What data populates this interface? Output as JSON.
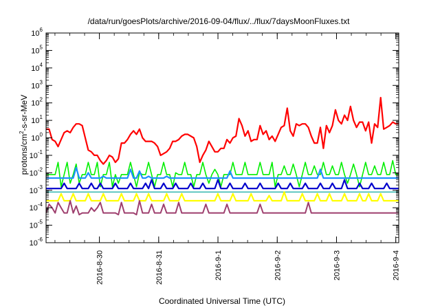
{
  "chart_data": {
    "type": "line",
    "title": "/data/run/goesPlots/archive/2016-09-04/flux/../flux/7daysMoonFluxes.txt",
    "xlabel": "Coordinated Universal Time (UTC)",
    "ylabel": {
      "prefix": "protons/cm",
      "sup": "2",
      "suffix": "-s-sr-MeV"
    },
    "y_scale": "log",
    "ylim_exp": [
      -6,
      6
    ],
    "y_tick_exponents": [
      -6,
      -5,
      -4,
      -3,
      -2,
      -1,
      0,
      1,
      2,
      3,
      4,
      5,
      6
    ],
    "x_range_days": [
      0,
      5.95
    ],
    "x_ticks": [
      {
        "label": "2016-8-30",
        "day": 0.9
      },
      {
        "label": "2016-8-31",
        "day": 1.9
      },
      {
        "label": "2016-9-1",
        "day": 2.9
      },
      {
        "label": "2016-9-2",
        "day": 3.9
      },
      {
        "label": "2016-9-3",
        "day": 4.9
      },
      {
        "label": "2016-9-4",
        "day": 5.9
      }
    ],
    "grid": false,
    "series": [
      {
        "color": "#ff0000",
        "width": 2.2,
        "values": [
          0.5,
          0.5,
          -0.1,
          -0.2,
          -0.5,
          -0.1,
          0.3,
          0.4,
          0.3,
          0.6,
          0.8,
          0.8,
          0.7,
          0.0,
          -0.7,
          -0.8,
          -1.0,
          -1.0,
          -1.3,
          -1.5,
          -1.3,
          -1.0,
          -1.1,
          -1.4,
          -1.2,
          -0.3,
          -0.3,
          -0.1,
          0.2,
          0.4,
          0.2,
          0.5,
          0.0,
          -0.2,
          -0.2,
          -0.2,
          -0.3,
          -0.5,
          -1.0,
          -0.9,
          -0.8,
          -0.6,
          -0.2,
          -0.2,
          -0.1,
          0.1,
          0.2,
          0.2,
          0.1,
          0.0,
          -0.5,
          -1.4,
          -1.0,
          -0.7,
          -0.2,
          -0.5,
          -0.8,
          -0.8,
          -0.6,
          -0.6,
          -0.1,
          -0.3,
          0.0,
          0.1,
          1.1,
          0.7,
          0.1,
          0.4,
          -0.2,
          -0.1,
          -0.1,
          0.7,
          0.2,
          0.4,
          -0.1,
          0.1,
          -0.2,
          0.2,
          0.6,
          0.7,
          1.7,
          0.4,
          0.1,
          0.8,
          0.7,
          0.8,
          0.8,
          0.6,
          0.1,
          -0.3,
          -0.3,
          0.6,
          -0.6,
          0.7,
          0.3,
          0.7,
          1.6,
          1.0,
          0.8,
          1.3,
          1.0,
          1.8,
          1.0,
          0.6,
          0.9,
          0.9,
          0.4,
          0.9,
          -0.3,
          0.8,
          0.6,
          2.3,
          0.5,
          0.6,
          0.7,
          0.9,
          0.8,
          0.8
        ]
      },
      {
        "color": "#00ee00",
        "width": 1.6,
        "values": [
          -2.1,
          -2.1,
          -2.1,
          -2.1,
          -1.4,
          -2.8,
          -2.1,
          -1.4,
          -2.6,
          -2.1,
          -1.5,
          -2.6,
          -2.1,
          -2.1,
          -1.4,
          -2.1,
          -2.1,
          -1.4,
          -2.8,
          -2.1,
          -2.1,
          -1.4,
          -2.8,
          -2.1,
          -2.6,
          -2.1,
          -2.1,
          -2.1,
          -1.4,
          -2.1,
          -2.8,
          -2.0,
          -2.1,
          -2.1,
          -1.4,
          -2.1,
          -2.8,
          -2.1,
          -2.1,
          -1.4,
          -2.1,
          -2.1,
          -2.8,
          -2.0,
          -2.1,
          -2.1,
          -1.4,
          -2.1,
          -2.1,
          -2.8,
          -2.1,
          -2.1,
          -1.4,
          -2.1,
          -2.6,
          -2.1,
          -1.8,
          -2.1,
          -2.8,
          -2.1,
          -2.1,
          -2.1,
          -1.4,
          -2.1,
          -2.1,
          -2.1,
          -1.4,
          -2.1,
          -2.1,
          -2.1,
          -2.1,
          -1.4,
          -2.1,
          -2.1,
          -2.1,
          -1.4,
          -2.8,
          -2.1,
          -2.1,
          -1.6,
          -2.1,
          -2.1,
          -1.5,
          -2.1,
          -2.8,
          -2.1,
          -1.4,
          -2.1,
          -2.1,
          -1.6,
          -2.1,
          -2.1,
          -1.4,
          -2.1,
          -2.1,
          -1.6,
          -2.1,
          -2.1,
          -1.4,
          -2.1,
          -2.6,
          -2.1,
          -1.5,
          -2.1,
          -2.8,
          -2.1,
          -1.4,
          -2.1,
          -2.1,
          -1.6,
          -2.1,
          -2.1,
          -1.4,
          -2.1,
          -2.1,
          -1.3,
          -2.1,
          -2.1
        ]
      },
      {
        "color": "#1e90ff",
        "width": 2.2,
        "values": [
          -2.3,
          -2.3,
          -2.3,
          -2.3,
          -2.3,
          -2.3,
          -2.3,
          -2.3,
          -2.3,
          -2.3,
          -1.7,
          -2.3,
          -2.3,
          -2.3,
          -2.0,
          -2.3,
          -2.3,
          -2.3,
          -2.3,
          -2.2,
          -2.3,
          -2.3,
          -2.3,
          -2.3,
          -2.3,
          -2.3,
          -2.3,
          -2.3,
          -1.8,
          -2.3,
          -2.3,
          -1.9,
          -2.3,
          -2.3,
          -2.2,
          -2.3,
          -2.3,
          -2.3,
          -2.3,
          -2.3,
          -2.2,
          -2.3,
          -2.3,
          -2.3,
          -2.3,
          -2.3,
          -2.3,
          -2.3,
          -2.3,
          -2.3,
          -2.3,
          -2.3,
          -2.3,
          -2.3,
          -2.3,
          -2.3,
          -2.3,
          -2.3,
          -2.3,
          -2.3,
          -2.3,
          -1.9,
          -2.3,
          -2.3,
          -2.3,
          -2.3,
          -2.3,
          -2.3,
          -2.3,
          -2.3,
          -2.3,
          -2.3,
          -2.3,
          -2.3,
          -2.3,
          -2.3,
          -2.3,
          -2.3,
          -2.3,
          -2.3,
          -2.3,
          -2.3,
          -2.3,
          -2.3,
          -2.3,
          -2.3,
          -2.3,
          -2.3,
          -2.3,
          -2.3,
          -2.3,
          -1.8,
          -2.3,
          -2.3,
          -2.3,
          -2.3,
          -2.3,
          -2.3,
          -2.3,
          -2.3,
          -2.3,
          -2.3,
          -2.3,
          -2.3,
          -2.3,
          -2.3,
          -2.3,
          -2.3,
          -2.3,
          -2.3,
          -2.3,
          -2.3,
          -2.3,
          -2.3,
          -2.3,
          -2.3,
          -2.3,
          -2.3
        ]
      },
      {
        "color": "#0000cc",
        "width": 2.2,
        "values": [
          -2.9,
          -2.9,
          -2.9,
          -2.9,
          -2.9,
          -2.9,
          -2.6,
          -2.9,
          -2.9,
          -2.9,
          -2.9,
          -2.6,
          -2.9,
          -2.9,
          -2.9,
          -2.6,
          -2.9,
          -2.9,
          -2.6,
          -2.9,
          -2.9,
          -2.9,
          -2.9,
          -2.6,
          -2.9,
          -2.9,
          -2.9,
          -2.9,
          -2.6,
          -2.9,
          -2.9,
          -2.9,
          -2.9,
          -2.6,
          -2.9,
          -2.4,
          -2.9,
          -2.9,
          -2.9,
          -2.6,
          -2.9,
          -2.9,
          -2.9,
          -2.6,
          -2.9,
          -2.9,
          -2.9,
          -2.9,
          -2.6,
          -2.9,
          -2.9,
          -2.9,
          -2.6,
          -2.9,
          -2.9,
          -2.9,
          -2.9,
          -2.4,
          -2.9,
          -2.9,
          -2.9,
          -2.6,
          -2.9,
          -2.9,
          -2.9,
          -2.9,
          -2.6,
          -2.9,
          -2.9,
          -2.9,
          -2.9,
          -2.6,
          -2.9,
          -2.9,
          -2.9,
          -2.9,
          -2.9,
          -2.6,
          -2.9,
          -2.9,
          -2.9,
          -2.6,
          -2.9,
          -2.9,
          -2.9,
          -2.9,
          -2.6,
          -2.9,
          -2.9,
          -2.9,
          -2.9,
          -2.6,
          -2.9,
          -2.9,
          -2.9,
          -2.6,
          -2.9,
          -2.9,
          -2.9,
          -2.4,
          -2.9,
          -2.9,
          -2.9,
          -2.9,
          -2.6,
          -2.9,
          -2.9,
          -2.9,
          -2.6,
          -2.9,
          -2.9,
          -2.9,
          -2.9,
          -2.6,
          -2.9,
          -2.9,
          -2.9,
          -2.9
        ]
      },
      {
        "color": "#20b2aa",
        "width": 1.4,
        "values": [
          -3.1,
          -3.1,
          -3.1,
          -3.1,
          -3.1,
          -3.1,
          -3.1,
          -3.1,
          -3.1,
          -3.1,
          -3.1,
          -3.1,
          -3.1,
          -3.1,
          -3.1,
          -3.1,
          -3.1,
          -3.1,
          -3.1,
          -3.1,
          -3.1,
          -3.1,
          -3.1,
          -3.1,
          -3.1,
          -3.1,
          -3.1,
          -3.1,
          -3.1,
          -3.1,
          -3.1,
          -3.1,
          -3.1,
          -3.1,
          -3.1,
          -3.1,
          -3.1,
          -3.1,
          -3.1,
          -3.1,
          -3.1,
          -3.1,
          -3.1,
          -3.1,
          -3.1,
          -3.1,
          -3.1,
          -3.1,
          -3.1,
          -3.1,
          -3.1,
          -3.1,
          -3.1,
          -3.1,
          -3.1,
          -3.1,
          -3.1,
          -3.1,
          -3.1,
          -3.1,
          -3.1,
          -3.1,
          -3.1,
          -3.1,
          -3.1,
          -3.1,
          -3.1,
          -3.1,
          -3.1,
          -3.1,
          -3.1,
          -3.1,
          -3.1,
          -3.1,
          -3.1,
          -3.1,
          -3.1,
          -3.1,
          -3.1,
          -3.1,
          -3.1,
          -3.1,
          -3.1,
          -3.1,
          -3.1,
          -3.1,
          -3.1,
          -3.1,
          -3.1,
          -3.1,
          -3.1,
          -3.1,
          -3.1,
          -3.1,
          -3.1,
          -3.1,
          -3.1,
          -3.1,
          -3.1,
          -3.1,
          -3.1,
          -3.1,
          -3.1,
          -3.1,
          -3.1,
          -3.1,
          -3.1,
          -3.1,
          -3.1,
          -3.1,
          -3.1,
          -3.1,
          -3.1,
          -3.1,
          -3.1,
          -3.1,
          -3.1,
          -3.1
        ]
      },
      {
        "color": "#ffff00",
        "width": 2.2,
        "values": [
          -3.6,
          -3.6,
          -3.6,
          -3.6,
          -3.6,
          -3.2,
          -3.6,
          -3.6,
          -3.6,
          -3.2,
          -3.6,
          -3.6,
          -3.6,
          -3.6,
          -3.2,
          -3.6,
          -3.6,
          -3.6,
          -3.6,
          -3.2,
          -3.6,
          -3.6,
          -3.6,
          -3.6,
          -3.6,
          -3.2,
          -3.6,
          -3.6,
          -3.6,
          -3.6,
          -3.2,
          -3.6,
          -3.6,
          -3.6,
          -3.2,
          -3.6,
          -3.6,
          -3.6,
          -3.6,
          -3.6,
          -3.2,
          -3.6,
          -3.6,
          -3.6,
          -3.6,
          -3.2,
          -3.6,
          -3.6,
          -3.6,
          -3.6,
          -3.6,
          -3.6,
          -3.6,
          -3.6,
          -3.6,
          -3.6,
          -3.6,
          -3.2,
          -3.6,
          -3.6,
          -3.6,
          -3.6,
          -3.2,
          -3.6,
          -3.6,
          -3.6,
          -3.6,
          -3.6,
          -3.2,
          -3.6,
          -3.6,
          -3.6,
          -3.6,
          -3.6,
          -3.3,
          -3.6,
          -3.6,
          -3.6,
          -3.6,
          -3.1,
          -3.6,
          -3.6,
          -3.6,
          -3.6,
          -3.6,
          -3.2,
          -3.6,
          -3.6,
          -3.6,
          -3.6,
          -3.2,
          -3.6,
          -3.6,
          -3.6,
          -3.2,
          -3.6,
          -3.6,
          -3.6,
          -3.6,
          -3.2,
          -3.6,
          -3.6,
          -3.6,
          -3.6,
          -3.2,
          -3.6,
          -3.6,
          -3.2,
          -3.6,
          -3.6,
          -3.6,
          -3.2,
          -3.6,
          -3.6,
          -3.6,
          -3.6,
          -3.6,
          -3.6
        ]
      },
      {
        "color": "#9e3f6e",
        "width": 2.0,
        "values": [
          -4.3,
          -3.8,
          -4.0,
          -4.3,
          -3.7,
          -4.0,
          -4.3,
          -4.3,
          -3.6,
          -4.3,
          -3.9,
          -4.4,
          -4.3,
          -4.3,
          -4.3,
          -4.0,
          -4.2,
          -4.0,
          -3.7,
          -4.3,
          -4.3,
          -4.3,
          -4.3,
          -4.3,
          -4.4,
          -3.7,
          -4.3,
          -4.3,
          -4.3,
          -4.3,
          -4.4,
          -3.6,
          -4.3,
          -4.3,
          -4.3,
          -3.8,
          -4.3,
          -4.3,
          -4.3,
          -3.8,
          -4.3,
          -4.3,
          -4.3,
          -4.3,
          -3.7,
          -4.3,
          -4.3,
          -4.3,
          -4.3,
          -4.3,
          -4.3,
          -4.3,
          -4.3,
          -3.8,
          -4.3,
          -4.3,
          -4.3,
          -4.3,
          -4.3,
          -4.3,
          -3.8,
          -4.3,
          -4.3,
          -4.3,
          -4.3,
          -4.3,
          -4.3,
          -4.3,
          -4.3,
          -4.3,
          -4.3,
          -3.8,
          -4.3,
          -4.3,
          -4.3,
          -4.3,
          -4.3,
          -4.3,
          -4.3,
          -4.3,
          -4.3,
          -4.3,
          -4.3,
          -4.3,
          -4.3,
          -4.3,
          -4.3,
          -3.7,
          -4.3,
          -4.3,
          -4.3,
          -4.3,
          -4.3,
          -4.3,
          -4.3,
          -4.3,
          -4.3,
          -4.3,
          -4.3,
          -4.3,
          -4.3,
          -4.3,
          -4.3,
          -4.3,
          -4.3,
          -4.3,
          -4.3,
          -4.3,
          -4.3,
          -4.3,
          -4.3,
          -4.3,
          -4.3,
          -4.3,
          -4.3,
          -4.3,
          -4.3,
          -4.3
        ]
      }
    ]
  }
}
